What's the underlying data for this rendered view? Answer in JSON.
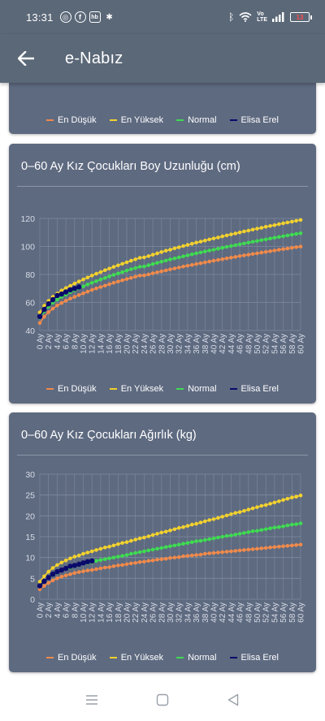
{
  "status": {
    "time": "13:31",
    "battery": "13",
    "left_icons": [
      "instagram-icon",
      "facebook-icon",
      "hb-icon",
      "pinwheel-icon"
    ],
    "right_icons": [
      "bluetooth-icon",
      "wifi-icon",
      "volte-icon",
      "signal-icon",
      "battery-icon"
    ]
  },
  "app_bar": {
    "title": "e-Nabız",
    "back_icon": "arrow-left-icon"
  },
  "colors": {
    "bar": "#5b6878",
    "card": "#5e6a80",
    "lowest": "#f08a4b",
    "highest": "#f2d12e",
    "normal": "#3fdb52",
    "child": "#0a0a6b"
  },
  "legend": [
    "En Düşük",
    "En Yüksek",
    "Normal",
    "Elisa Erel"
  ],
  "chart_data": [
    {
      "type": "line",
      "title": "0–60 Ay Kız Çocukları Boy Uzunluğu (cm)",
      "x": [
        0,
        1,
        2,
        3,
        4,
        5,
        6,
        7,
        8,
        9,
        10,
        11,
        12,
        13,
        14,
        15,
        16,
        17,
        18,
        19,
        20,
        21,
        22,
        23,
        24,
        25,
        26,
        27,
        28,
        29,
        30,
        31,
        32,
        33,
        34,
        35,
        36,
        37,
        38,
        39,
        40,
        41,
        42,
        43,
        44,
        45,
        46,
        47,
        48,
        49,
        50,
        51,
        52,
        53,
        54,
        55,
        56,
        57,
        58,
        59,
        60
      ],
      "x_tick_labels": [
        "0 Ay",
        "2 Ay",
        "4 Ay",
        "6 Ay",
        "8 Ay",
        "10 Ay",
        "12 Ay",
        "14 Ay",
        "16 Ay",
        "18 Ay",
        "20 Ay",
        "22 Ay",
        "24 Ay",
        "26 Ay",
        "28 Ay",
        "30 Ay",
        "32 Ay",
        "34 Ay",
        "36 Ay",
        "38 Ay",
        "40 Ay",
        "42 Ay",
        "44 Ay",
        "46 Ay",
        "48 Ay",
        "50 Ay",
        "52 Ay",
        "54 Ay",
        "56 Ay",
        "58 Ay",
        "60 Ay"
      ],
      "y_ticks": [
        40,
        60,
        80,
        100,
        120
      ],
      "ylim": [
        40,
        120
      ],
      "grid": true,
      "legend_position": "bottom",
      "series": [
        {
          "name": "En Düşük",
          "color_key": "lowest",
          "values": [
            45.4,
            49.8,
            53.0,
            55.6,
            57.8,
            59.6,
            61.2,
            62.7,
            64.0,
            65.3,
            66.5,
            67.7,
            68.9,
            70.0,
            71.0,
            72.0,
            73.0,
            74.0,
            74.9,
            75.8,
            76.7,
            77.5,
            78.4,
            79.2,
            79.3,
            80.0,
            80.8,
            81.5,
            82.2,
            82.9,
            83.6,
            84.3,
            84.9,
            85.6,
            86.2,
            86.8,
            87.4,
            88.0,
            88.6,
            89.2,
            89.8,
            90.4,
            90.9,
            91.5,
            92.0,
            92.5,
            93.1,
            93.6,
            94.1,
            94.6,
            95.1,
            95.6,
            96.1,
            96.6,
            97.1,
            97.6,
            98.1,
            98.5,
            99.0,
            99.5,
            99.9
          ]
        },
        {
          "name": "En Yüksek",
          "color_key": "highest",
          "values": [
            52.9,
            57.6,
            61.1,
            64.0,
            66.4,
            68.5,
            70.3,
            71.9,
            73.5,
            75.0,
            76.4,
            77.8,
            79.2,
            80.5,
            81.7,
            83.0,
            84.2,
            85.4,
            86.5,
            87.6,
            88.7,
            89.8,
            90.8,
            91.9,
            92.2,
            93.1,
            94.1,
            95.0,
            96.0,
            96.9,
            97.7,
            98.6,
            99.4,
            100.3,
            101.1,
            101.9,
            102.7,
            103.4,
            104.2,
            105.0,
            105.7,
            106.4,
            107.2,
            107.9,
            108.6,
            109.3,
            110.0,
            110.7,
            111.3,
            112.0,
            112.7,
            113.3,
            114.0,
            114.6,
            115.2,
            115.9,
            116.5,
            117.1,
            117.7,
            118.3,
            118.9
          ]
        },
        {
          "name": "Normal",
          "color_key": "normal",
          "values": [
            49.1,
            53.7,
            57.1,
            59.8,
            62.1,
            64.0,
            65.7,
            67.3,
            68.7,
            70.1,
            71.5,
            72.8,
            74.0,
            75.2,
            76.4,
            77.5,
            78.6,
            79.7,
            80.7,
            81.7,
            82.7,
            83.7,
            84.6,
            85.5,
            85.7,
            86.6,
            87.4,
            88.3,
            89.1,
            89.9,
            90.7,
            91.4,
            92.2,
            92.9,
            93.6,
            94.4,
            95.1,
            95.7,
            96.4,
            97.1,
            97.7,
            98.4,
            99.0,
            99.7,
            100.3,
            100.9,
            101.5,
            102.1,
            102.7,
            103.3,
            103.9,
            104.5,
            105.0,
            105.6,
            106.2,
            106.7,
            107.3,
            107.8,
            108.4,
            108.9,
            109.4
          ]
        },
        {
          "name": "Elisa Erel",
          "color_key": "child",
          "values": [
            50,
            55,
            59,
            62,
            65,
            66,
            67.5,
            69,
            70,
            71,
            null,
            null,
            null,
            null,
            null,
            null,
            null,
            null,
            null,
            null,
            null,
            null,
            null,
            null,
            null,
            null,
            null,
            null,
            null,
            null,
            null,
            null,
            null,
            null,
            null,
            null,
            null,
            null,
            null,
            null,
            null,
            null,
            null,
            null,
            null,
            null,
            null,
            null,
            null,
            null,
            null,
            null,
            null,
            null,
            null,
            null,
            null,
            null,
            null,
            null,
            null
          ]
        }
      ]
    },
    {
      "type": "line",
      "title": "0–60 Ay Kız Çocukları Ağırlık (kg)",
      "x": [
        0,
        1,
        2,
        3,
        4,
        5,
        6,
        7,
        8,
        9,
        10,
        11,
        12,
        13,
        14,
        15,
        16,
        17,
        18,
        19,
        20,
        21,
        22,
        23,
        24,
        25,
        26,
        27,
        28,
        29,
        30,
        31,
        32,
        33,
        34,
        35,
        36,
        37,
        38,
        39,
        40,
        41,
        42,
        43,
        44,
        45,
        46,
        47,
        48,
        49,
        50,
        51,
        52,
        53,
        54,
        55,
        56,
        57,
        58,
        59,
        60
      ],
      "x_tick_labels": [
        "0 Ay",
        "2 Ay",
        "4 Ay",
        "6 Ay",
        "8 Ay",
        "10 Ay",
        "12 Ay",
        "14 Ay",
        "16 Ay",
        "18 Ay",
        "20 Ay",
        "22 Ay",
        "24 Ay",
        "26 Ay",
        "28 Ay",
        "30 Ay",
        "32 Ay",
        "34 Ay",
        "36 Ay",
        "38 Ay",
        "40 Ay",
        "42 Ay",
        "44 Ay",
        "46 Ay",
        "48 Ay",
        "50 Ay",
        "52 Ay",
        "54 Ay",
        "56 Ay",
        "58 Ay",
        "60 Ay"
      ],
      "y_ticks": [
        0,
        5,
        10,
        15,
        20,
        25,
        30
      ],
      "ylim": [
        0,
        30
      ],
      "grid": true,
      "legend_position": "bottom",
      "series": [
        {
          "name": "En Düşük",
          "color_key": "lowest",
          "values": [
            2.4,
            3.2,
            3.9,
            4.5,
            5.0,
            5.4,
            5.7,
            6.0,
            6.3,
            6.5,
            6.7,
            6.9,
            7.0,
            7.2,
            7.4,
            7.6,
            7.7,
            7.9,
            8.1,
            8.2,
            8.4,
            8.6,
            8.7,
            8.9,
            9.0,
            9.2,
            9.3,
            9.5,
            9.6,
            9.7,
            9.9,
            10.0,
            10.1,
            10.3,
            10.4,
            10.5,
            10.6,
            10.7,
            10.9,
            11.0,
            11.1,
            11.2,
            11.3,
            11.4,
            11.5,
            11.6,
            11.7,
            11.8,
            11.9,
            12.0,
            12.1,
            12.2,
            12.3,
            12.4,
            12.5,
            12.6,
            12.7,
            12.8,
            12.9,
            13.0,
            13.1
          ]
        },
        {
          "name": "En Yüksek",
          "color_key": "highest",
          "values": [
            4.2,
            5.5,
            6.6,
            7.5,
            8.2,
            8.8,
            9.3,
            9.8,
            10.2,
            10.5,
            10.9,
            11.2,
            11.5,
            11.8,
            12.1,
            12.4,
            12.6,
            12.9,
            13.2,
            13.5,
            13.7,
            14.0,
            14.3,
            14.6,
            14.8,
            15.1,
            15.4,
            15.7,
            16.0,
            16.2,
            16.5,
            16.8,
            17.1,
            17.3,
            17.6,
            17.9,
            18.1,
            18.4,
            18.7,
            19.0,
            19.2,
            19.5,
            19.8,
            20.1,
            20.4,
            20.7,
            20.9,
            21.2,
            21.5,
            21.8,
            22.1,
            22.4,
            22.6,
            22.9,
            23.2,
            23.5,
            23.8,
            24.1,
            24.4,
            24.6,
            24.9
          ]
        },
        {
          "name": "Normal",
          "color_key": "normal",
          "values": [
            3.2,
            4.2,
            5.1,
            5.8,
            6.4,
            6.9,
            7.3,
            7.6,
            7.9,
            8.2,
            8.5,
            8.7,
            8.9,
            9.2,
            9.4,
            9.6,
            9.8,
            10.0,
            10.2,
            10.4,
            10.6,
            10.9,
            11.1,
            11.3,
            11.5,
            11.7,
            11.9,
            12.1,
            12.3,
            12.5,
            12.7,
            12.9,
            13.1,
            13.3,
            13.5,
            13.7,
            13.9,
            14.0,
            14.2,
            14.4,
            14.6,
            14.8,
            15.0,
            15.2,
            15.3,
            15.5,
            15.7,
            15.9,
            16.1,
            16.3,
            16.4,
            16.6,
            16.8,
            17.0,
            17.2,
            17.3,
            17.5,
            17.7,
            17.9,
            18.0,
            18.2
          ]
        },
        {
          "name": "Elisa Erel",
          "color_key": "child",
          "values": [
            3.2,
            4.3,
            5.2,
            6.0,
            6.6,
            7.0,
            7.4,
            7.9,
            8.1,
            8.4,
            8.7,
            9.0,
            9.2,
            null,
            null,
            null,
            null,
            null,
            null,
            null,
            null,
            null,
            null,
            null,
            null,
            null,
            null,
            null,
            null,
            null,
            null,
            null,
            null,
            null,
            null,
            null,
            null,
            null,
            null,
            null,
            null,
            null,
            null,
            null,
            null,
            null,
            null,
            null,
            null,
            null,
            null,
            null,
            null,
            null,
            null,
            null,
            null,
            null,
            null,
            null,
            null
          ]
        }
      ]
    }
  ],
  "nav": {
    "icons": [
      "menu-icon",
      "home-square-icon",
      "back-triangle-icon"
    ]
  }
}
